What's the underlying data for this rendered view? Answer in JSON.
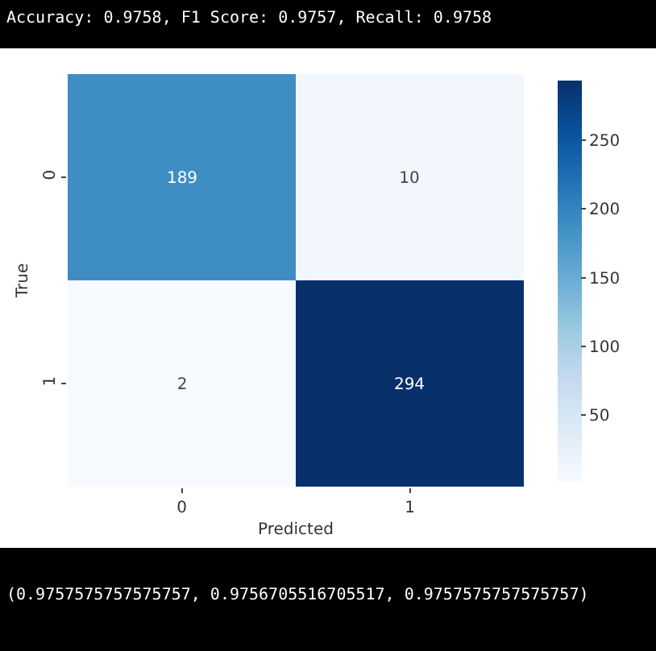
{
  "chart_data": {
    "type": "heatmap",
    "title": "Accuracy: 0.9758, F1 Score: 0.9757, Recall: 0.9758",
    "xlabel": "Predicted",
    "ylabel": "True",
    "categories": [
      "0",
      "1"
    ],
    "y_categories": [
      "0",
      "1"
    ],
    "cells": [
      [
        189,
        10
      ],
      [
        2,
        294
      ]
    ],
    "clim": [
      2,
      294
    ],
    "cticks": [
      50,
      100,
      150,
      200,
      250
    ],
    "data_labels": true,
    "annotations": [
      "(0.9757575757575757, 0.9756705516705517, 0.9757575757575757)"
    ]
  }
}
